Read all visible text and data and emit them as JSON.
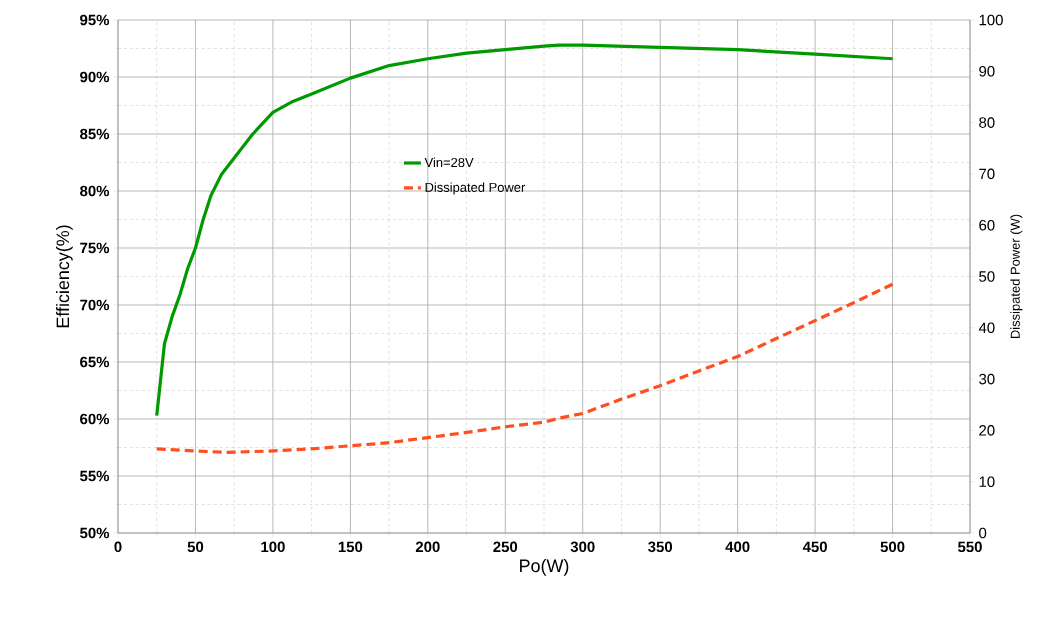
{
  "chart_data": {
    "type": "line",
    "xlabel": "Po(W)",
    "ylabel": "Efficiency(%)",
    "y2label": "Dissipated Power (W)",
    "xlim": [
      0,
      550
    ],
    "xticks": [
      0,
      50,
      100,
      150,
      200,
      250,
      300,
      350,
      400,
      450,
      500,
      550
    ],
    "ylim": [
      50,
      95
    ],
    "yticks": [
      {
        "value": 50,
        "label": "50%"
      },
      {
        "value": 55,
        "label": "55%"
      },
      {
        "value": 60,
        "label": "60%"
      },
      {
        "value": 65,
        "label": "65%"
      },
      {
        "value": 70,
        "label": "70%"
      },
      {
        "value": 75,
        "label": "75%"
      },
      {
        "value": 80,
        "label": "80%"
      },
      {
        "value": 85,
        "label": "85%"
      },
      {
        "value": 90,
        "label": "90%"
      },
      {
        "value": 95,
        "label": "95%"
      }
    ],
    "y2lim": [
      0,
      100
    ],
    "y2ticks": [
      0,
      10,
      20,
      30,
      40,
      50,
      60,
      70,
      80,
      90,
      100
    ],
    "grid": true,
    "legend": "top",
    "marker": "none",
    "series": [
      {
        "name": "Vin=28V",
        "color": "#009a00",
        "line_style": "solid",
        "x": [
          25,
          30,
          35,
          40,
          45,
          50,
          55,
          60,
          67,
          75,
          87,
          100,
          112,
          125,
          150,
          175,
          200,
          225,
          250,
          275,
          285,
          300,
          350,
          400,
          450,
          500
        ],
        "values": [
          60.3,
          66.6,
          69.0,
          70.9,
          73.2,
          75.0,
          77.5,
          79.6,
          81.5,
          82.9,
          85.0,
          86.9,
          87.8,
          88.5,
          89.9,
          91.0,
          91.6,
          92.1,
          92.4,
          92.7,
          92.8,
          92.8,
          92.6,
          92.4,
          92.0,
          91.6
        ]
      },
      {
        "name": "Dissipated Power",
        "color": "#ff4f1f",
        "line_style": "dashed",
        "axis": "y2",
        "x": [
          25,
          50,
          70,
          100,
          125,
          150,
          175,
          200,
          225,
          250,
          275,
          285,
          300,
          325,
          350,
          375,
          400,
          425,
          450,
          475,
          500
        ],
        "values": [
          16.4,
          16.0,
          15.7,
          16.0,
          16.4,
          17.0,
          17.6,
          18.6,
          19.6,
          20.7,
          21.6,
          22.4,
          23.3,
          26.1,
          28.7,
          31.6,
          34.4,
          37.9,
          41.4,
          44.9,
          48.5
        ]
      }
    ]
  }
}
